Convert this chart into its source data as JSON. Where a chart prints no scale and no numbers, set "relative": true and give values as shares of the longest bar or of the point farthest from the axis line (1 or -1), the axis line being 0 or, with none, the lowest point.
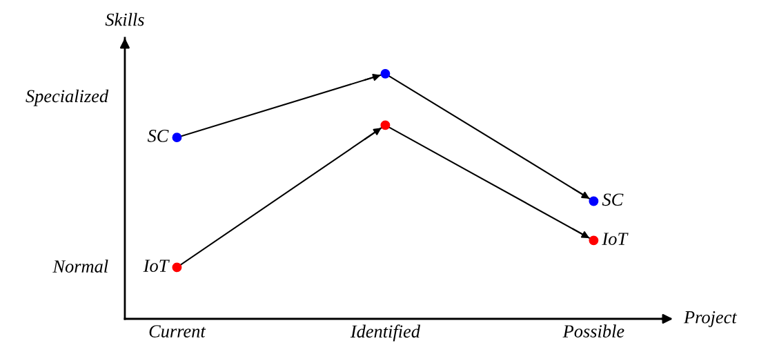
{
  "chart_data": {
    "type": "line",
    "xlabel": "Project",
    "ylabel": "Skills",
    "categories": [
      "Current",
      "Identified",
      "Possible"
    ],
    "relative": true,
    "annotations": [
      "Normal",
      "Specialized"
    ],
    "series": [
      {
        "name": "SC",
        "color": "#0000ff",
        "values": [
          0.74,
          1.0,
          0.48
        ]
      },
      {
        "name": "IoT",
        "color": "#ff0000",
        "values": [
          0.21,
          0.79,
          0.32
        ]
      }
    ],
    "marker": "circle",
    "line_style": "solid",
    "grid": false,
    "legend": "right"
  }
}
